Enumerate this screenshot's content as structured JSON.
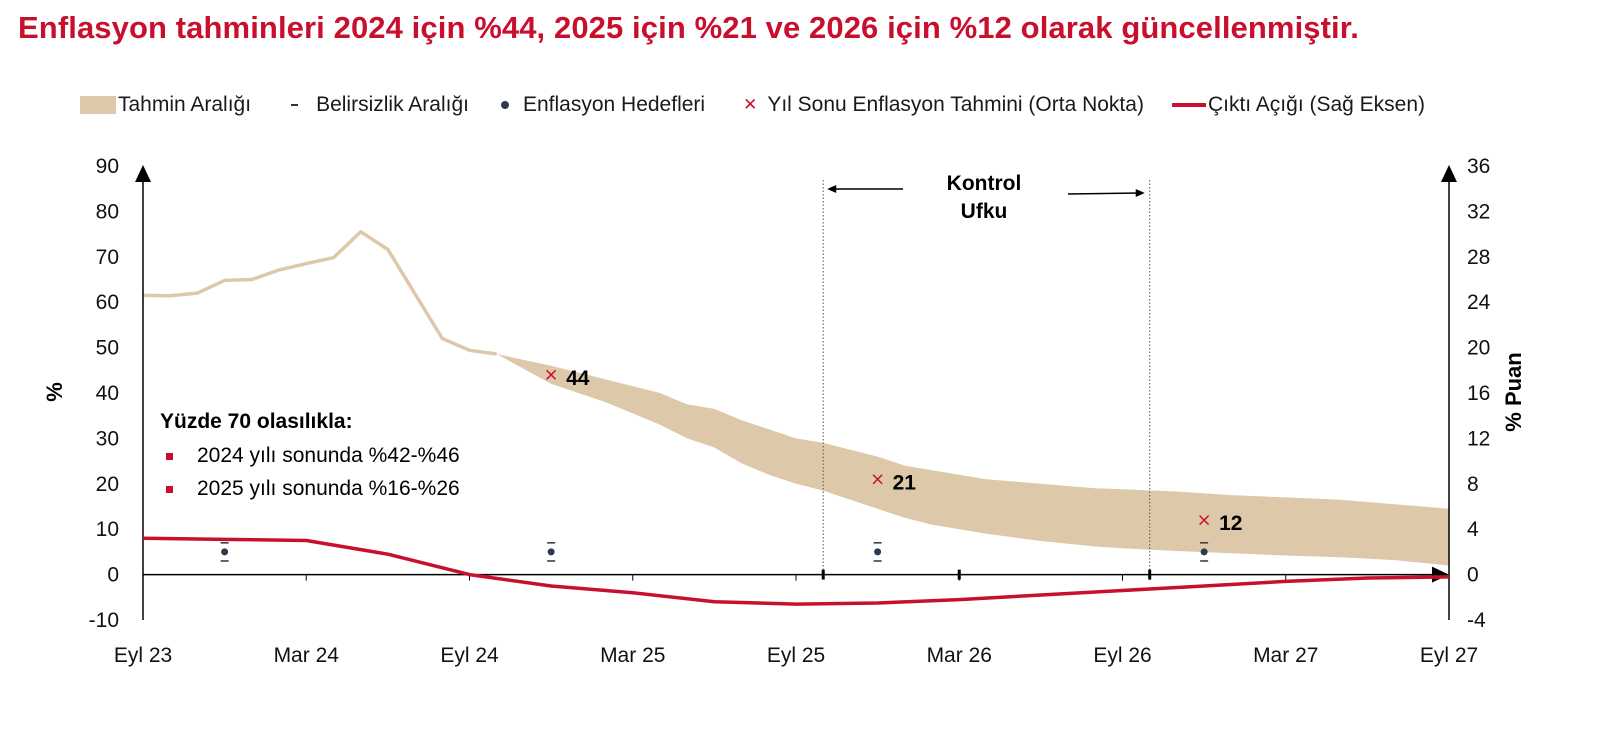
{
  "title": "Enflasyon tahminleri 2024 için %44, 2025 için %21 ve 2026 için %12 olarak güncellenmiştir.",
  "legend": {
    "band": "Tahmin Aralığı",
    "uncertainty": "Belirsizlik Aralığı",
    "targets": "Enflasyon Hedefleri",
    "forecast": "Yıl Sonu Enflasyon Tahmini (Orta Nokta)",
    "output_gap": "Çıktı Açığı (Sağ Eksen)"
  },
  "note": {
    "heading": "Yüzde 70 olasılıkla:",
    "items": [
      "2024 yılı sonunda %42-%46",
      "2025 yılı sonunda %16-%26"
    ]
  },
  "control_horizon": {
    "line1": "Kontrol",
    "line2": "Ufku"
  },
  "chart_data": {
    "type": "area",
    "x_labels": [
      "Eyl 23",
      "Mar 24",
      "Eyl 24",
      "Mar 25",
      "Eyl 25",
      "Mar 26",
      "Eyl 26",
      "Mar 27",
      "Eyl 27"
    ],
    "x_range_months": [
      0,
      48
    ],
    "y_left": {
      "label": "%",
      "range": [
        -10,
        90
      ],
      "ticks": [
        "90",
        "80",
        "70",
        "60",
        "50",
        "40",
        "30",
        "20",
        "10",
        "0",
        "-10"
      ]
    },
    "y_right": {
      "label": "% Puan",
      "range": [
        -4,
        36
      ],
      "ticks": [
        "36",
        "32",
        "28",
        "24",
        "20",
        "16",
        "12",
        "8",
        "4",
        "0",
        "-4"
      ]
    },
    "realized_inflation": {
      "months": [
        0,
        1,
        2,
        3,
        4,
        5,
        6,
        7,
        8,
        9,
        10,
        11,
        12,
        13
      ],
      "values": [
        61.5,
        61.4,
        62,
        64.8,
        65,
        67.1,
        68.5,
        69.8,
        75.5,
        71.6,
        61.8,
        52,
        49.4,
        48.6
      ]
    },
    "forecast_band": {
      "months": [
        13,
        15,
        17,
        19,
        20,
        21,
        22,
        23,
        24,
        25,
        26,
        27,
        28,
        29,
        30,
        31,
        32,
        33,
        34,
        35,
        36,
        38,
        40,
        42,
        44,
        46,
        48
      ],
      "upper": [
        48.6,
        46,
        43,
        40,
        37.5,
        36.5,
        34,
        32,
        30,
        29,
        27.5,
        26,
        24,
        23,
        22,
        21,
        20.5,
        20,
        19.5,
        19,
        18.8,
        18.3,
        17.5,
        17,
        16.5,
        15.5,
        14.5
      ],
      "lower": [
        48.6,
        42,
        38,
        33,
        30,
        28,
        24.5,
        22,
        20,
        18.5,
        16.5,
        14.5,
        12.5,
        11,
        10,
        9,
        8.2,
        7.4,
        6.8,
        6.2,
        5.8,
        5.2,
        4.7,
        4.2,
        3.8,
        3.2,
        2
      ]
    },
    "year_end_forecasts": [
      {
        "month": 15,
        "value": 44,
        "label": "44"
      },
      {
        "month": 27,
        "value": 21,
        "label": "21"
      },
      {
        "month": 39,
        "value": 12,
        "label": "12"
      }
    ],
    "inflation_targets": [
      {
        "month": 3,
        "value": 5,
        "band": [
          3,
          7
        ]
      },
      {
        "month": 15,
        "value": 5,
        "band": [
          3,
          7
        ]
      },
      {
        "month": 27,
        "value": 5,
        "band": [
          3,
          7
        ]
      },
      {
        "month": 39,
        "value": 5,
        "band": [
          3,
          7
        ]
      }
    ],
    "output_gap": {
      "months": [
        0,
        3,
        6,
        9,
        12,
        15,
        18,
        21,
        24,
        27,
        30,
        33,
        36,
        39,
        42,
        45,
        48
      ],
      "values": [
        3.2,
        3.1,
        3.0,
        1.8,
        0.0,
        -1.0,
        -1.6,
        -2.4,
        -2.6,
        -2.5,
        -2.2,
        -1.8,
        -1.4,
        -1.0,
        -0.6,
        -0.3,
        -0.2
      ]
    },
    "control_horizon_months": [
      25,
      37
    ],
    "colors": {
      "band": "#ddc9a9",
      "realized": "#ddc9a9",
      "gap": "#c8102e",
      "x_mark": "#c8102e",
      "target": "#2d3a4a",
      "title": "#c8102e"
    }
  }
}
